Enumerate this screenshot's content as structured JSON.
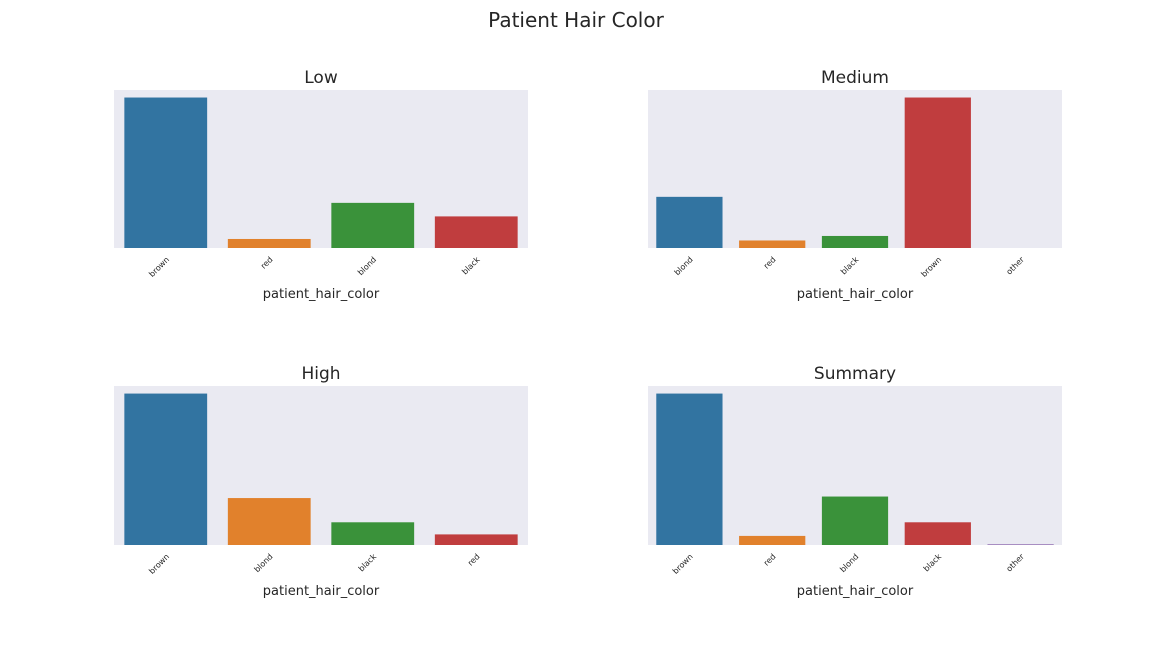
{
  "suptitle": "Patient Hair Color",
  "colors": {
    "background": "#eaeaf2",
    "brown": "#3274a1",
    "red": "#e1812c",
    "blond": "#3a923a",
    "black": "#c03d3e",
    "other": "#9372b2"
  },
  "chart_data": [
    {
      "type": "bar",
      "title": "Low",
      "xlabel": "patient_hair_color",
      "ylabel": "",
      "categories": [
        "brown",
        "red",
        "blond",
        "black"
      ],
      "values": [
        100,
        6,
        30,
        21
      ],
      "bar_colors": [
        "#3274a1",
        "#e1812c",
        "#3a923a",
        "#c03d3e"
      ],
      "ylim": [
        0,
        105
      ],
      "grid": false,
      "y_ticks_visible": false
    },
    {
      "type": "bar",
      "title": "Medium",
      "xlabel": "patient_hair_color",
      "ylabel": "",
      "categories": [
        "blond",
        "red",
        "black",
        "brown",
        "other"
      ],
      "values": [
        34,
        5,
        8,
        100,
        0
      ],
      "bar_colors": [
        "#3274a1",
        "#e1812c",
        "#3a923a",
        "#c03d3e",
        "#9372b2"
      ],
      "ylim": [
        0,
        105
      ],
      "grid": false,
      "y_ticks_visible": false
    },
    {
      "type": "bar",
      "title": "High",
      "xlabel": "patient_hair_color",
      "ylabel": "",
      "categories": [
        "brown",
        "blond",
        "black",
        "red"
      ],
      "values": [
        100,
        31,
        15,
        7
      ],
      "bar_colors": [
        "#3274a1",
        "#e1812c",
        "#3a923a",
        "#c03d3e"
      ],
      "ylim": [
        0,
        105
      ],
      "grid": false,
      "y_ticks_visible": false
    },
    {
      "type": "bar",
      "title": "Summary",
      "xlabel": "patient_hair_color",
      "ylabel": "",
      "categories": [
        "brown",
        "red",
        "blond",
        "black",
        "other"
      ],
      "values": [
        100,
        6,
        32,
        15,
        0.5
      ],
      "bar_colors": [
        "#3274a1",
        "#e1812c",
        "#3a923a",
        "#c03d3e",
        "#9372b2"
      ],
      "ylim": [
        0,
        105
      ],
      "grid": false,
      "y_ticks_visible": false
    }
  ]
}
